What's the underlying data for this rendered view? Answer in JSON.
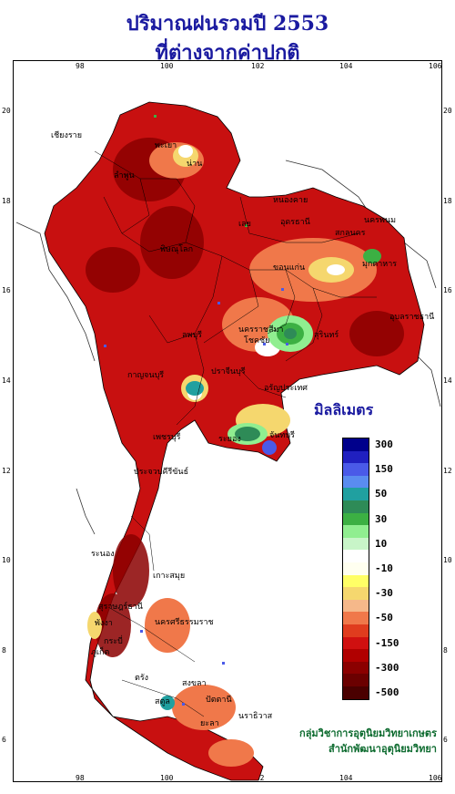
{
  "title": {
    "line1": "ปริมาณฝนรวมปี 2553",
    "line2": "ที่ต่างจากค่าปกติ"
  },
  "axes": {
    "lon_ticks": [
      "98",
      "100",
      "102",
      "104",
      "106"
    ],
    "lat_ticks": [
      "20",
      "18",
      "16",
      "14",
      "12",
      "10",
      "8",
      "6"
    ]
  },
  "legend": {
    "title": "มิลลิเมตร",
    "items": [
      {
        "label": "300",
        "color": "#00008b"
      },
      {
        "label": "",
        "color": "#2020c0"
      },
      {
        "label": "150",
        "color": "#4a5ae8"
      },
      {
        "label": "",
        "color": "#5a8cf0"
      },
      {
        "label": "50",
        "color": "#20a0a0"
      },
      {
        "label": "",
        "color": "#2e8b57"
      },
      {
        "label": "30",
        "color": "#3cb043"
      },
      {
        "label": "",
        "color": "#90ee90"
      },
      {
        "label": "10",
        "color": "#c8f5c8"
      },
      {
        "label": "",
        "color": "#ffffff"
      },
      {
        "label": "-10",
        "color": "#fffff0"
      },
      {
        "label": "",
        "color": "#ffff66"
      },
      {
        "label": "-30",
        "color": "#f5d76e"
      },
      {
        "label": "",
        "color": "#f5b88a"
      },
      {
        "label": "-50",
        "color": "#f0784a"
      },
      {
        "label": "",
        "color": "#e03c1e"
      },
      {
        "label": "-150",
        "color": "#d01010"
      },
      {
        "label": "",
        "color": "#b00000"
      },
      {
        "label": "-300",
        "color": "#8b0000"
      },
      {
        "label": "",
        "color": "#6b0000"
      },
      {
        "label": "-500",
        "color": "#4a0000"
      }
    ]
  },
  "places": [
    "เชียงราย",
    "พะเยา",
    "น่าน",
    "ลำพูน",
    "เลย",
    "หนองคาย",
    "อุดรธานี",
    "นครพนม",
    "สกลนคร",
    "มุกดาหาร",
    "ขอนแก่น",
    "พิษณุโลก",
    "นครราชสีมา",
    "สุรินทร์",
    "อุบลราชธานี",
    "ลพบุรี",
    "ปราจีนบุรี",
    "กาญจนบุรี",
    "อรัญประเทศ",
    "ระยอง",
    "จันทบุรี",
    "เพชรบุรี",
    "ประจวบคีรีขันธ์",
    "เกาะสมุย",
    "ระนอง",
    "สุราษฎร์ธานี",
    "นครศรีธรรมราช",
    "พังงา",
    "ภูเก็ต",
    "กระบี่",
    "ตรัง",
    "สงขลา",
    "สตูล",
    "ปัตตานี",
    "นราธิวาส",
    "ยะลา",
    "โชคชัย"
  ],
  "credit": {
    "line1": "กลุ่มวิชาการอุตุนิยมวิทยาเกษตร",
    "line2": "สำนักพัฒนาอุตุนิยมวิทยา"
  }
}
